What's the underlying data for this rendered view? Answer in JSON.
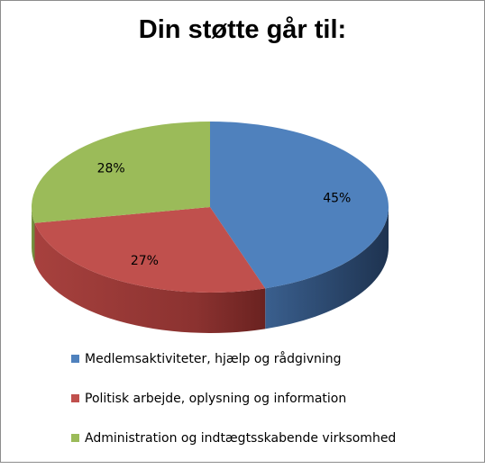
{
  "chart_data": {
    "type": "pie",
    "title": "Din støtte går til:",
    "categories": [
      "Medlemsaktiviteter, hjælp og rådgivning",
      "Politisk arbejde, oplysning og information",
      "Administration og indtægtsskabende virksomhed"
    ],
    "values": [
      45,
      27,
      28
    ],
    "labels": [
      "45%",
      "27%",
      "28%"
    ],
    "colors": [
      "#4f81bd",
      "#c0504d",
      "#9bbb59"
    ],
    "legend_position": "bottom",
    "three_d": true
  }
}
